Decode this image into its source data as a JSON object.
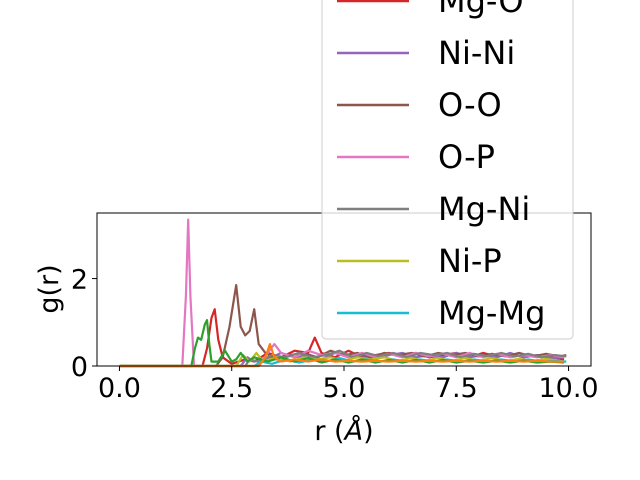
{
  "chart_data": {
    "type": "line",
    "title": "",
    "xlabel": "r ($\\AA$)",
    "xlabel_main": "r (",
    "xlabel_unit": "Å",
    "xlabel_close": ")",
    "ylabel": "g(r)",
    "xlim": [
      -0.5,
      10.5
    ],
    "ylim": [
      0,
      3.5
    ],
    "x_ticks": [
      0.0,
      2.5,
      5.0,
      7.5,
      10.0
    ],
    "x_tick_labels": [
      "0.0",
      "2.5",
      "5.0",
      "7.5",
      "10.0"
    ],
    "y_ticks": [
      0,
      2
    ],
    "y_tick_labels": [
      "0",
      "2"
    ],
    "grid": false,
    "legend_placement": "top-right",
    "series": [
      {
        "name": "Mg-O",
        "color": "#d62728",
        "points": [
          [
            0,
            0
          ],
          [
            1.85,
            0
          ],
          [
            1.95,
            0.4
          ],
          [
            2.05,
            1.1
          ],
          [
            2.12,
            1.3
          ],
          [
            2.2,
            0.6
          ],
          [
            2.3,
            0.2
          ],
          [
            2.5,
            0.05
          ],
          [
            2.8,
            0.15
          ],
          [
            3.0,
            0.1
          ],
          [
            3.3,
            0.3
          ],
          [
            3.6,
            0.2
          ],
          [
            3.9,
            0.35
          ],
          [
            4.2,
            0.3
          ],
          [
            4.35,
            0.65
          ],
          [
            4.5,
            0.3
          ],
          [
            4.8,
            0.2
          ],
          [
            5.1,
            0.35
          ],
          [
            5.4,
            0.2
          ],
          [
            5.7,
            0.25
          ],
          [
            6.0,
            0.3
          ],
          [
            6.3,
            0.25
          ],
          [
            6.6,
            0.3
          ],
          [
            6.9,
            0.2
          ],
          [
            7.2,
            0.25
          ],
          [
            7.5,
            0.3
          ],
          [
            7.8,
            0.2
          ],
          [
            8.1,
            0.3
          ],
          [
            8.4,
            0.22
          ],
          [
            8.7,
            0.28
          ],
          [
            9.0,
            0.2
          ],
          [
            9.3,
            0.25
          ],
          [
            9.6,
            0.2
          ],
          [
            9.9,
            0.15
          ]
        ]
      },
      {
        "name": "Ni-Ni",
        "color": "#9467bd",
        "points": [
          [
            0,
            0
          ],
          [
            2.7,
            0
          ],
          [
            2.85,
            0.2
          ],
          [
            3.0,
            0.1
          ],
          [
            3.3,
            0.15
          ],
          [
            3.6,
            0.3
          ],
          [
            3.9,
            0.2
          ],
          [
            4.2,
            0.25
          ],
          [
            4.5,
            0.15
          ],
          [
            4.8,
            0.3
          ],
          [
            5.1,
            0.2
          ],
          [
            5.4,
            0.25
          ],
          [
            5.7,
            0.15
          ],
          [
            6.0,
            0.25
          ],
          [
            6.3,
            0.3
          ],
          [
            6.6,
            0.2
          ],
          [
            6.9,
            0.25
          ],
          [
            7.2,
            0.2
          ],
          [
            7.5,
            0.3
          ],
          [
            7.8,
            0.2
          ],
          [
            8.1,
            0.25
          ],
          [
            8.4,
            0.2
          ],
          [
            8.7,
            0.3
          ],
          [
            9.0,
            0.2
          ],
          [
            9.3,
            0.25
          ],
          [
            9.6,
            0.18
          ],
          [
            9.9,
            0.2
          ]
        ]
      },
      {
        "name": "O-O",
        "color": "#8c564b",
        "points": [
          [
            0,
            0
          ],
          [
            2.15,
            0
          ],
          [
            2.3,
            0.2
          ],
          [
            2.45,
            0.9
          ],
          [
            2.6,
            1.85
          ],
          [
            2.7,
            0.9
          ],
          [
            2.8,
            0.7
          ],
          [
            2.9,
            0.8
          ],
          [
            3.0,
            1.3
          ],
          [
            3.1,
            0.5
          ],
          [
            3.25,
            0.3
          ],
          [
            3.5,
            0.15
          ],
          [
            3.8,
            0.25
          ],
          [
            4.1,
            0.3
          ],
          [
            4.4,
            0.2
          ],
          [
            4.7,
            0.35
          ],
          [
            5.0,
            0.25
          ],
          [
            5.3,
            0.3
          ],
          [
            5.6,
            0.2
          ],
          [
            5.9,
            0.3
          ],
          [
            6.2,
            0.25
          ],
          [
            6.5,
            0.3
          ],
          [
            6.8,
            0.22
          ],
          [
            7.1,
            0.3
          ],
          [
            7.4,
            0.25
          ],
          [
            7.7,
            0.3
          ],
          [
            8.0,
            0.22
          ],
          [
            8.3,
            0.28
          ],
          [
            8.6,
            0.22
          ],
          [
            8.9,
            0.3
          ],
          [
            9.2,
            0.22
          ],
          [
            9.5,
            0.28
          ],
          [
            9.8,
            0.22
          ],
          [
            9.95,
            0.25
          ]
        ]
      },
      {
        "name": "O-P",
        "color": "#e377c2",
        "points": [
          [
            0,
            0
          ],
          [
            1.4,
            0
          ],
          [
            1.48,
            1.6
          ],
          [
            1.53,
            3.35
          ],
          [
            1.58,
            1.6
          ],
          [
            1.66,
            0
          ],
          [
            3.1,
            0
          ],
          [
            3.3,
            0.3
          ],
          [
            3.45,
            0.5
          ],
          [
            3.6,
            0.3
          ],
          [
            3.9,
            0.2
          ],
          [
            4.2,
            0.35
          ],
          [
            4.5,
            0.25
          ],
          [
            4.8,
            0.3
          ],
          [
            5.1,
            0.2
          ],
          [
            5.4,
            0.3
          ],
          [
            5.7,
            0.2
          ],
          [
            6.0,
            0.28
          ],
          [
            6.3,
            0.2
          ],
          [
            6.6,
            0.3
          ],
          [
            6.9,
            0.22
          ],
          [
            7.2,
            0.28
          ],
          [
            7.5,
            0.2
          ],
          [
            7.8,
            0.3
          ],
          [
            8.1,
            0.2
          ],
          [
            8.4,
            0.28
          ],
          [
            8.7,
            0.2
          ],
          [
            9.0,
            0.25
          ],
          [
            9.3,
            0.2
          ],
          [
            9.6,
            0.25
          ],
          [
            9.9,
            0.2
          ]
        ]
      },
      {
        "name": "Mg-Ni",
        "color": "#7f7f7f",
        "points": [
          [
            0,
            0
          ],
          [
            2.8,
            0
          ],
          [
            2.9,
            0.15
          ],
          [
            3.1,
            0.1
          ],
          [
            3.4,
            0.25
          ],
          [
            3.7,
            0.2
          ],
          [
            4.0,
            0.3
          ],
          [
            4.3,
            0.2
          ],
          [
            4.6,
            0.25
          ],
          [
            4.9,
            0.35
          ],
          [
            5.2,
            0.2
          ],
          [
            5.5,
            0.3
          ],
          [
            5.8,
            0.22
          ],
          [
            6.1,
            0.3
          ],
          [
            6.4,
            0.2
          ],
          [
            6.7,
            0.3
          ],
          [
            7.0,
            0.25
          ],
          [
            7.3,
            0.3
          ],
          [
            7.6,
            0.2
          ],
          [
            7.9,
            0.28
          ],
          [
            8.2,
            0.22
          ],
          [
            8.5,
            0.3
          ],
          [
            8.8,
            0.22
          ],
          [
            9.1,
            0.28
          ],
          [
            9.4,
            0.2
          ],
          [
            9.7,
            0.25
          ],
          [
            9.95,
            0.22
          ]
        ]
      },
      {
        "name": "Ni-P",
        "color": "#bcbd22",
        "points": [
          [
            0,
            0
          ],
          [
            2.6,
            0
          ],
          [
            2.75,
            0.25
          ],
          [
            2.9,
            0.1
          ],
          [
            3.05,
            0.3
          ],
          [
            3.2,
            0.1
          ],
          [
            3.5,
            0.2
          ],
          [
            3.8,
            0.1
          ],
          [
            4.1,
            0.2
          ],
          [
            4.4,
            0.15
          ],
          [
            4.7,
            0.2
          ],
          [
            5.0,
            0.12
          ],
          [
            5.3,
            0.2
          ],
          [
            5.6,
            0.15
          ],
          [
            5.9,
            0.2
          ],
          [
            6.2,
            0.12
          ],
          [
            6.5,
            0.18
          ],
          [
            6.8,
            0.12
          ],
          [
            7.1,
            0.18
          ],
          [
            7.4,
            0.12
          ],
          [
            7.7,
            0.18
          ],
          [
            8.0,
            0.12
          ],
          [
            8.3,
            0.18
          ],
          [
            8.6,
            0.12
          ],
          [
            8.9,
            0.16
          ],
          [
            9.2,
            0.12
          ],
          [
            9.5,
            0.16
          ],
          [
            9.8,
            0.12
          ]
        ]
      },
      {
        "name": "Mg-Mg",
        "color": "#17becf",
        "points": [
          [
            0,
            0
          ],
          [
            3.0,
            0
          ],
          [
            3.15,
            0.1
          ],
          [
            3.4,
            0.05
          ],
          [
            3.7,
            0.15
          ],
          [
            4.0,
            0.08
          ],
          [
            4.3,
            0.15
          ],
          [
            4.6,
            0.1
          ],
          [
            4.9,
            0.18
          ],
          [
            5.2,
            0.1
          ],
          [
            5.5,
            0.15
          ],
          [
            5.8,
            0.1
          ],
          [
            6.1,
            0.15
          ],
          [
            6.4,
            0.1
          ],
          [
            6.7,
            0.15
          ],
          [
            7.0,
            0.1
          ],
          [
            7.3,
            0.15
          ],
          [
            7.6,
            0.1
          ],
          [
            7.9,
            0.15
          ],
          [
            8.2,
            0.1
          ],
          [
            8.5,
            0.15
          ],
          [
            8.8,
            0.1
          ],
          [
            9.1,
            0.15
          ],
          [
            9.4,
            0.1
          ],
          [
            9.7,
            0.12
          ],
          [
            9.95,
            0.1
          ]
        ]
      },
      {
        "color": "#2ca02c",
        "points": [
          [
            0,
            0
          ],
          [
            1.6,
            0
          ],
          [
            1.68,
            0.4
          ],
          [
            1.75,
            0.65
          ],
          [
            1.82,
            0.6
          ],
          [
            1.9,
            0.95
          ],
          [
            1.95,
            1.05
          ],
          [
            2.0,
            0.5
          ],
          [
            2.05,
            0.1
          ],
          [
            2.2,
            0.1
          ],
          [
            2.35,
            0.35
          ],
          [
            2.5,
            0.1
          ],
          [
            2.6,
            0.15
          ],
          [
            2.7,
            0.3
          ],
          [
            2.85,
            0.1
          ],
          [
            3.0,
            0.2
          ],
          [
            3.3,
            0.1
          ],
          [
            3.6,
            0.2
          ],
          [
            3.9,
            0.1
          ],
          [
            4.2,
            0.18
          ],
          [
            4.5,
            0.08
          ],
          [
            4.8,
            0.15
          ],
          [
            5.1,
            0.08
          ],
          [
            5.4,
            0.15
          ],
          [
            5.7,
            0.08
          ],
          [
            6.0,
            0.14
          ],
          [
            6.3,
            0.08
          ],
          [
            6.6,
            0.14
          ],
          [
            6.9,
            0.08
          ],
          [
            7.2,
            0.14
          ],
          [
            7.5,
            0.08
          ],
          [
            7.8,
            0.12
          ],
          [
            8.1,
            0.08
          ],
          [
            8.4,
            0.12
          ],
          [
            8.7,
            0.08
          ],
          [
            9.0,
            0.12
          ],
          [
            9.3,
            0.08
          ],
          [
            9.6,
            0.1
          ],
          [
            9.9,
            0.08
          ]
        ]
      },
      {
        "color": "#ff7f0e",
        "points": [
          [
            0,
            0
          ],
          [
            3.1,
            0
          ],
          [
            3.25,
            0.2
          ],
          [
            3.35,
            0.5
          ],
          [
            3.45,
            0.2
          ],
          [
            3.6,
            0.1
          ],
          [
            3.9,
            0.15
          ],
          [
            4.2,
            0.1
          ],
          [
            4.5,
            0.15
          ],
          [
            4.8,
            0.1
          ],
          [
            5.1,
            0.12
          ],
          [
            5.4,
            0.1
          ],
          [
            5.7,
            0.12
          ],
          [
            6.0,
            0.1
          ],
          [
            6.3,
            0.12
          ],
          [
            6.6,
            0.1
          ],
          [
            6.9,
            0.12
          ],
          [
            7.2,
            0.1
          ],
          [
            7.5,
            0.12
          ],
          [
            7.8,
            0.1
          ],
          [
            8.1,
            0.12
          ],
          [
            8.4,
            0.1
          ],
          [
            8.7,
            0.12
          ],
          [
            9.0,
            0.1
          ],
          [
            9.3,
            0.12
          ],
          [
            9.6,
            0.1
          ],
          [
            9.9,
            0.1
          ]
        ]
      }
    ]
  }
}
